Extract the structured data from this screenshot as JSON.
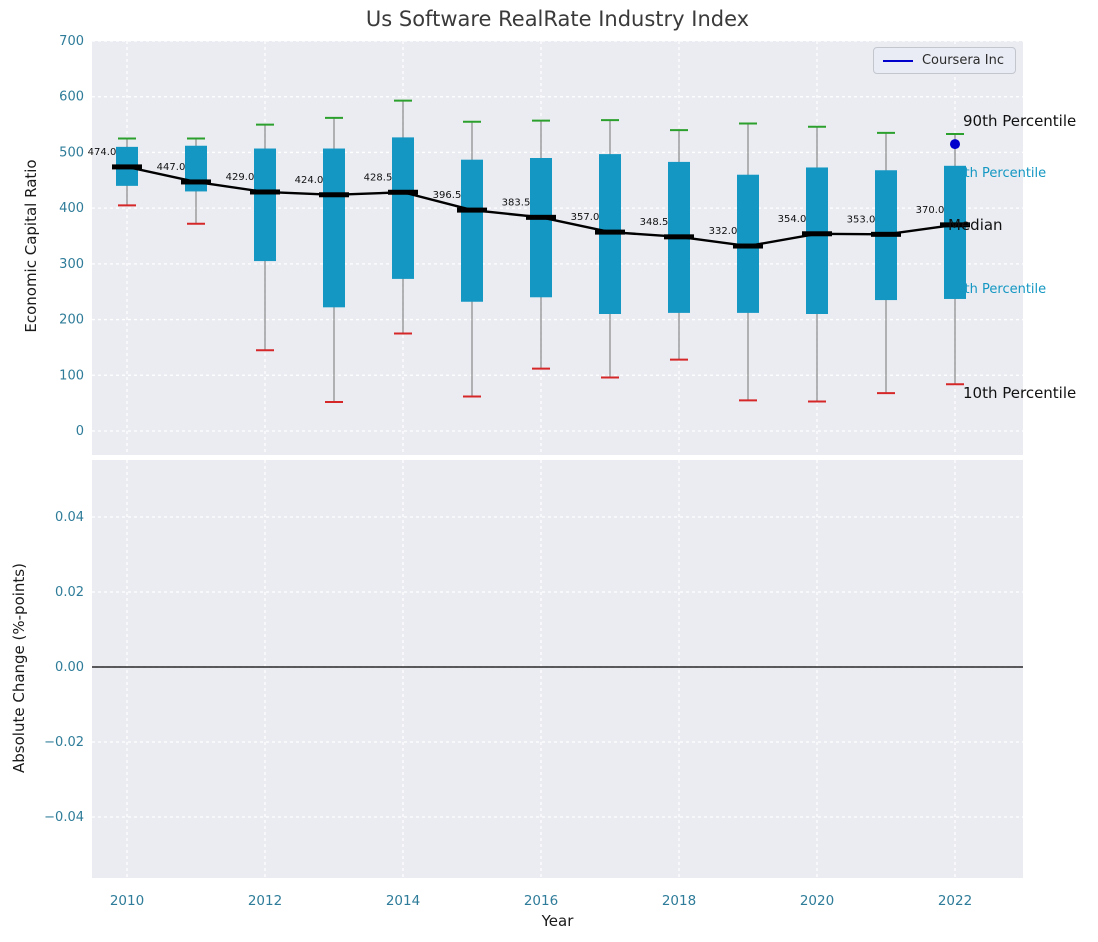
{
  "title": "Us Software RealRate Industry Index",
  "xlabel": "Year",
  "legend": {
    "label": "Coursera Inc"
  },
  "colors": {
    "box": "#1497c2",
    "whisker": "#909090",
    "cap_top": "#2ca02c",
    "cap_bottom": "#d62728",
    "median_line": "#000000",
    "company_point": "#0000cc",
    "panel_bg": "#eaecf2",
    "grid": "#ffffff",
    "tick_label": "#2e7c99",
    "label_dark": "#111111"
  },
  "chart_data": {
    "type": "boxplot",
    "title": "Us Software RealRate Industry Index",
    "xlabel": "Year",
    "legend_position": "upper right",
    "grid": "white dashed on light gray",
    "xticks": [
      2010,
      2012,
      2014,
      2016,
      2018,
      2020,
      2022
    ],
    "top_panel": {
      "ylabel": "Economic Capital Ratio",
      "ylim": [
        -45,
        700
      ],
      "yticks": [
        0,
        100,
        200,
        300,
        400,
        500,
        600,
        700
      ],
      "years": [
        2010,
        2011,
        2012,
        2013,
        2014,
        2015,
        2016,
        2017,
        2018,
        2019,
        2020,
        2021,
        2022
      ],
      "median": [
        474.0,
        447.0,
        429.0,
        424.0,
        428.5,
        396.5,
        383.5,
        357.0,
        348.5,
        332.0,
        354.0,
        353.0,
        370.0
      ],
      "median_labels": [
        "474.0",
        "447.0",
        "429.0",
        "424.0",
        "428.5",
        "396.5",
        "383.5",
        "357.0",
        "348.5",
        "332.0",
        "354.0",
        "353.0",
        "370.0"
      ],
      "p25": [
        440,
        430,
        305,
        222,
        273,
        232,
        240,
        210,
        212,
        212,
        210,
        235,
        237
      ],
      "p75": [
        510,
        512,
        507,
        507,
        527,
        487,
        490,
        497,
        483,
        460,
        473,
        468,
        476
      ],
      "p10": [
        405,
        372,
        145,
        52,
        175,
        62,
        112,
        96,
        128,
        55,
        53,
        68,
        84
      ],
      "p90": [
        525,
        525,
        550,
        562,
        593,
        555,
        557,
        558,
        540,
        552,
        546,
        535,
        533
      ],
      "percentile_annotations": {
        "p90": "90th Percentile",
        "p75": "75th Percentile",
        "median": "Median",
        "p25": "25th Percentile",
        "p10": "10th Percentile"
      },
      "company_point": {
        "label": "Coursera Inc",
        "year": 2022,
        "value": 515
      }
    },
    "bottom_panel": {
      "ylabel": "Absolute Change (%-points)",
      "ylim": [
        -0.055,
        0.055
      ],
      "yticks": [
        -0.04,
        -0.02,
        0.0,
        0.02,
        0.04
      ],
      "zero_line": 0.0,
      "series": []
    }
  }
}
